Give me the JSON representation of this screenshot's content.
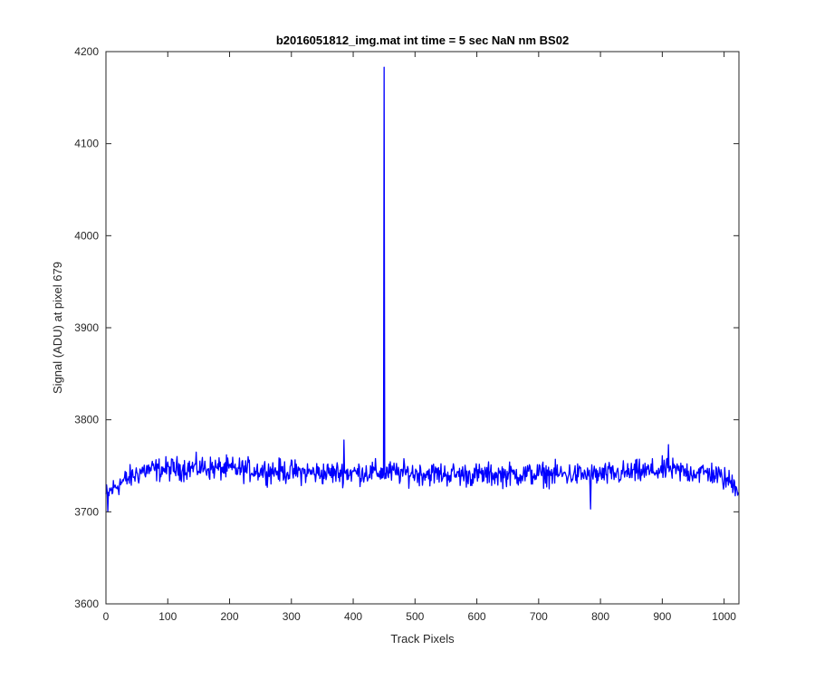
{
  "chart_data": {
    "type": "line",
    "title": "b2016051812_img.mat int time = 5 sec  NaN nm BS02",
    "xlabel": "Track Pixels",
    "ylabel": "Signal (ADU) at pixel 679",
    "xlim": [
      0,
      1024
    ],
    "ylim": [
      3600,
      4200
    ],
    "xticks": [
      "0",
      "100",
      "200",
      "300",
      "400",
      "500",
      "600",
      "700",
      "800",
      "900",
      "1000"
    ],
    "yticks": [
      "3600",
      "3700",
      "3800",
      "3900",
      "4000",
      "4100",
      "4200"
    ],
    "grid": false,
    "legend": "none",
    "series": [
      {
        "color": "#0000ff",
        "n_points": 1024,
        "baseline_knots": [
          [
            0,
            3718
          ],
          [
            20,
            3730
          ],
          [
            60,
            3745
          ],
          [
            150,
            3748
          ],
          [
            250,
            3745
          ],
          [
            350,
            3742
          ],
          [
            440,
            3743
          ],
          [
            600,
            3740
          ],
          [
            700,
            3741
          ],
          [
            800,
            3740
          ],
          [
            900,
            3745
          ],
          [
            980,
            3742
          ],
          [
            1024,
            3728
          ]
        ],
        "noise_amplitude": 11,
        "extrema": [
          {
            "x": 3,
            "y": 3700
          },
          {
            "x": 385,
            "y": 3778
          },
          {
            "x": 450,
            "y": 4183
          },
          {
            "x": 784,
            "y": 3703
          },
          {
            "x": 910,
            "y": 3773
          },
          {
            "x": 1022,
            "y": 3718
          }
        ]
      }
    ]
  }
}
